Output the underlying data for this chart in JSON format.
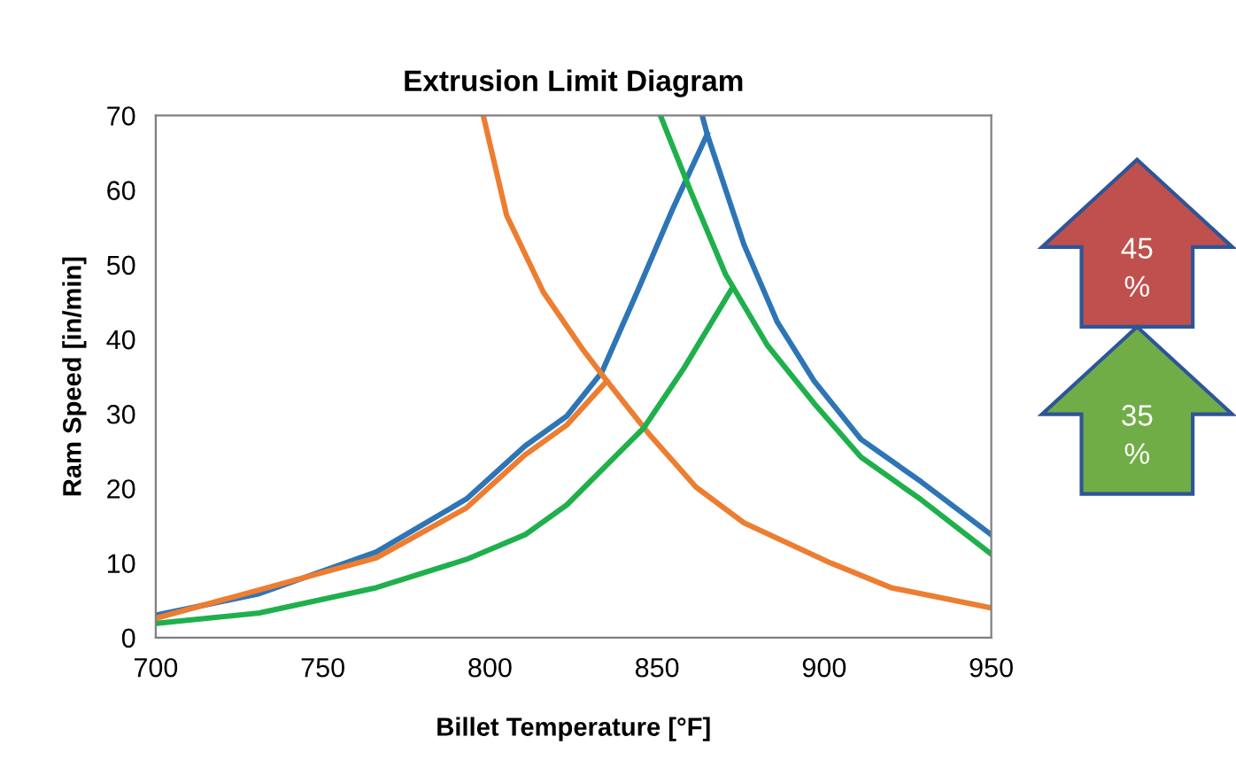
{
  "chart_data": {
    "type": "line",
    "title": "Extrusion Limit Diagram",
    "xlabel": "Billet Temperature [°F]",
    "ylabel": "Ram Speed [in/min]",
    "xlim": [
      700,
      950
    ],
    "xticks": [
      700,
      750,
      800,
      850,
      900,
      950
    ],
    "ylim": [
      0,
      70
    ],
    "yticks": [
      0,
      10,
      20,
      30,
      40,
      50,
      60,
      70
    ],
    "grid": false,
    "legend": false,
    "marker": "none",
    "line_style": "solid",
    "series": [
      {
        "color": "#2e75b6",
        "x": [
          700,
          731,
          766,
          793,
          810.5,
          823,
          833.5,
          844,
          854.7,
          865
        ],
        "values": [
          3.0,
          5.9,
          11.5,
          18.6,
          25.7,
          29.7,
          35.6,
          46.3,
          57.5,
          67.5
        ]
      },
      {
        "color": "#2e75b6",
        "x": [
          863.5,
          865,
          876,
          886,
          897,
          911,
          929,
          950
        ],
        "values": [
          70,
          67.5,
          52.7,
          42.3,
          34.4,
          26.6,
          20.9,
          13.8
        ]
      },
      {
        "color": "#ed7d31",
        "x": [
          700,
          766,
          793,
          810.5,
          823,
          835
        ],
        "values": [
          2.6,
          10.7,
          17.4,
          24.5,
          28.5,
          34.4
        ]
      },
      {
        "color": "#ed7d31",
        "x": [
          798,
          805,
          816,
          828,
          835,
          847.6,
          861.6,
          876,
          902,
          920,
          950
        ],
        "values": [
          70,
          56.6,
          46.3,
          38.5,
          34.4,
          27.3,
          20.2,
          15.4,
          10,
          6.7,
          4.0
        ]
      },
      {
        "color": "#1fb04c",
        "x": [
          700,
          731,
          766,
          793,
          810.5,
          823,
          846,
          858,
          872
        ],
        "values": [
          1.9,
          3.3,
          6.7,
          10.5,
          13.8,
          17.8,
          28.1,
          36.1,
          46.5
        ]
      },
      {
        "color": "#1fb04c",
        "x": [
          851,
          860,
          870.5,
          883,
          897,
          911,
          929,
          950
        ],
        "values": [
          70,
          59.9,
          48.7,
          39.2,
          31.4,
          24.2,
          18.5,
          11.2
        ]
      }
    ],
    "annotations": [
      "45\n%",
      "35\n%"
    ]
  }
}
